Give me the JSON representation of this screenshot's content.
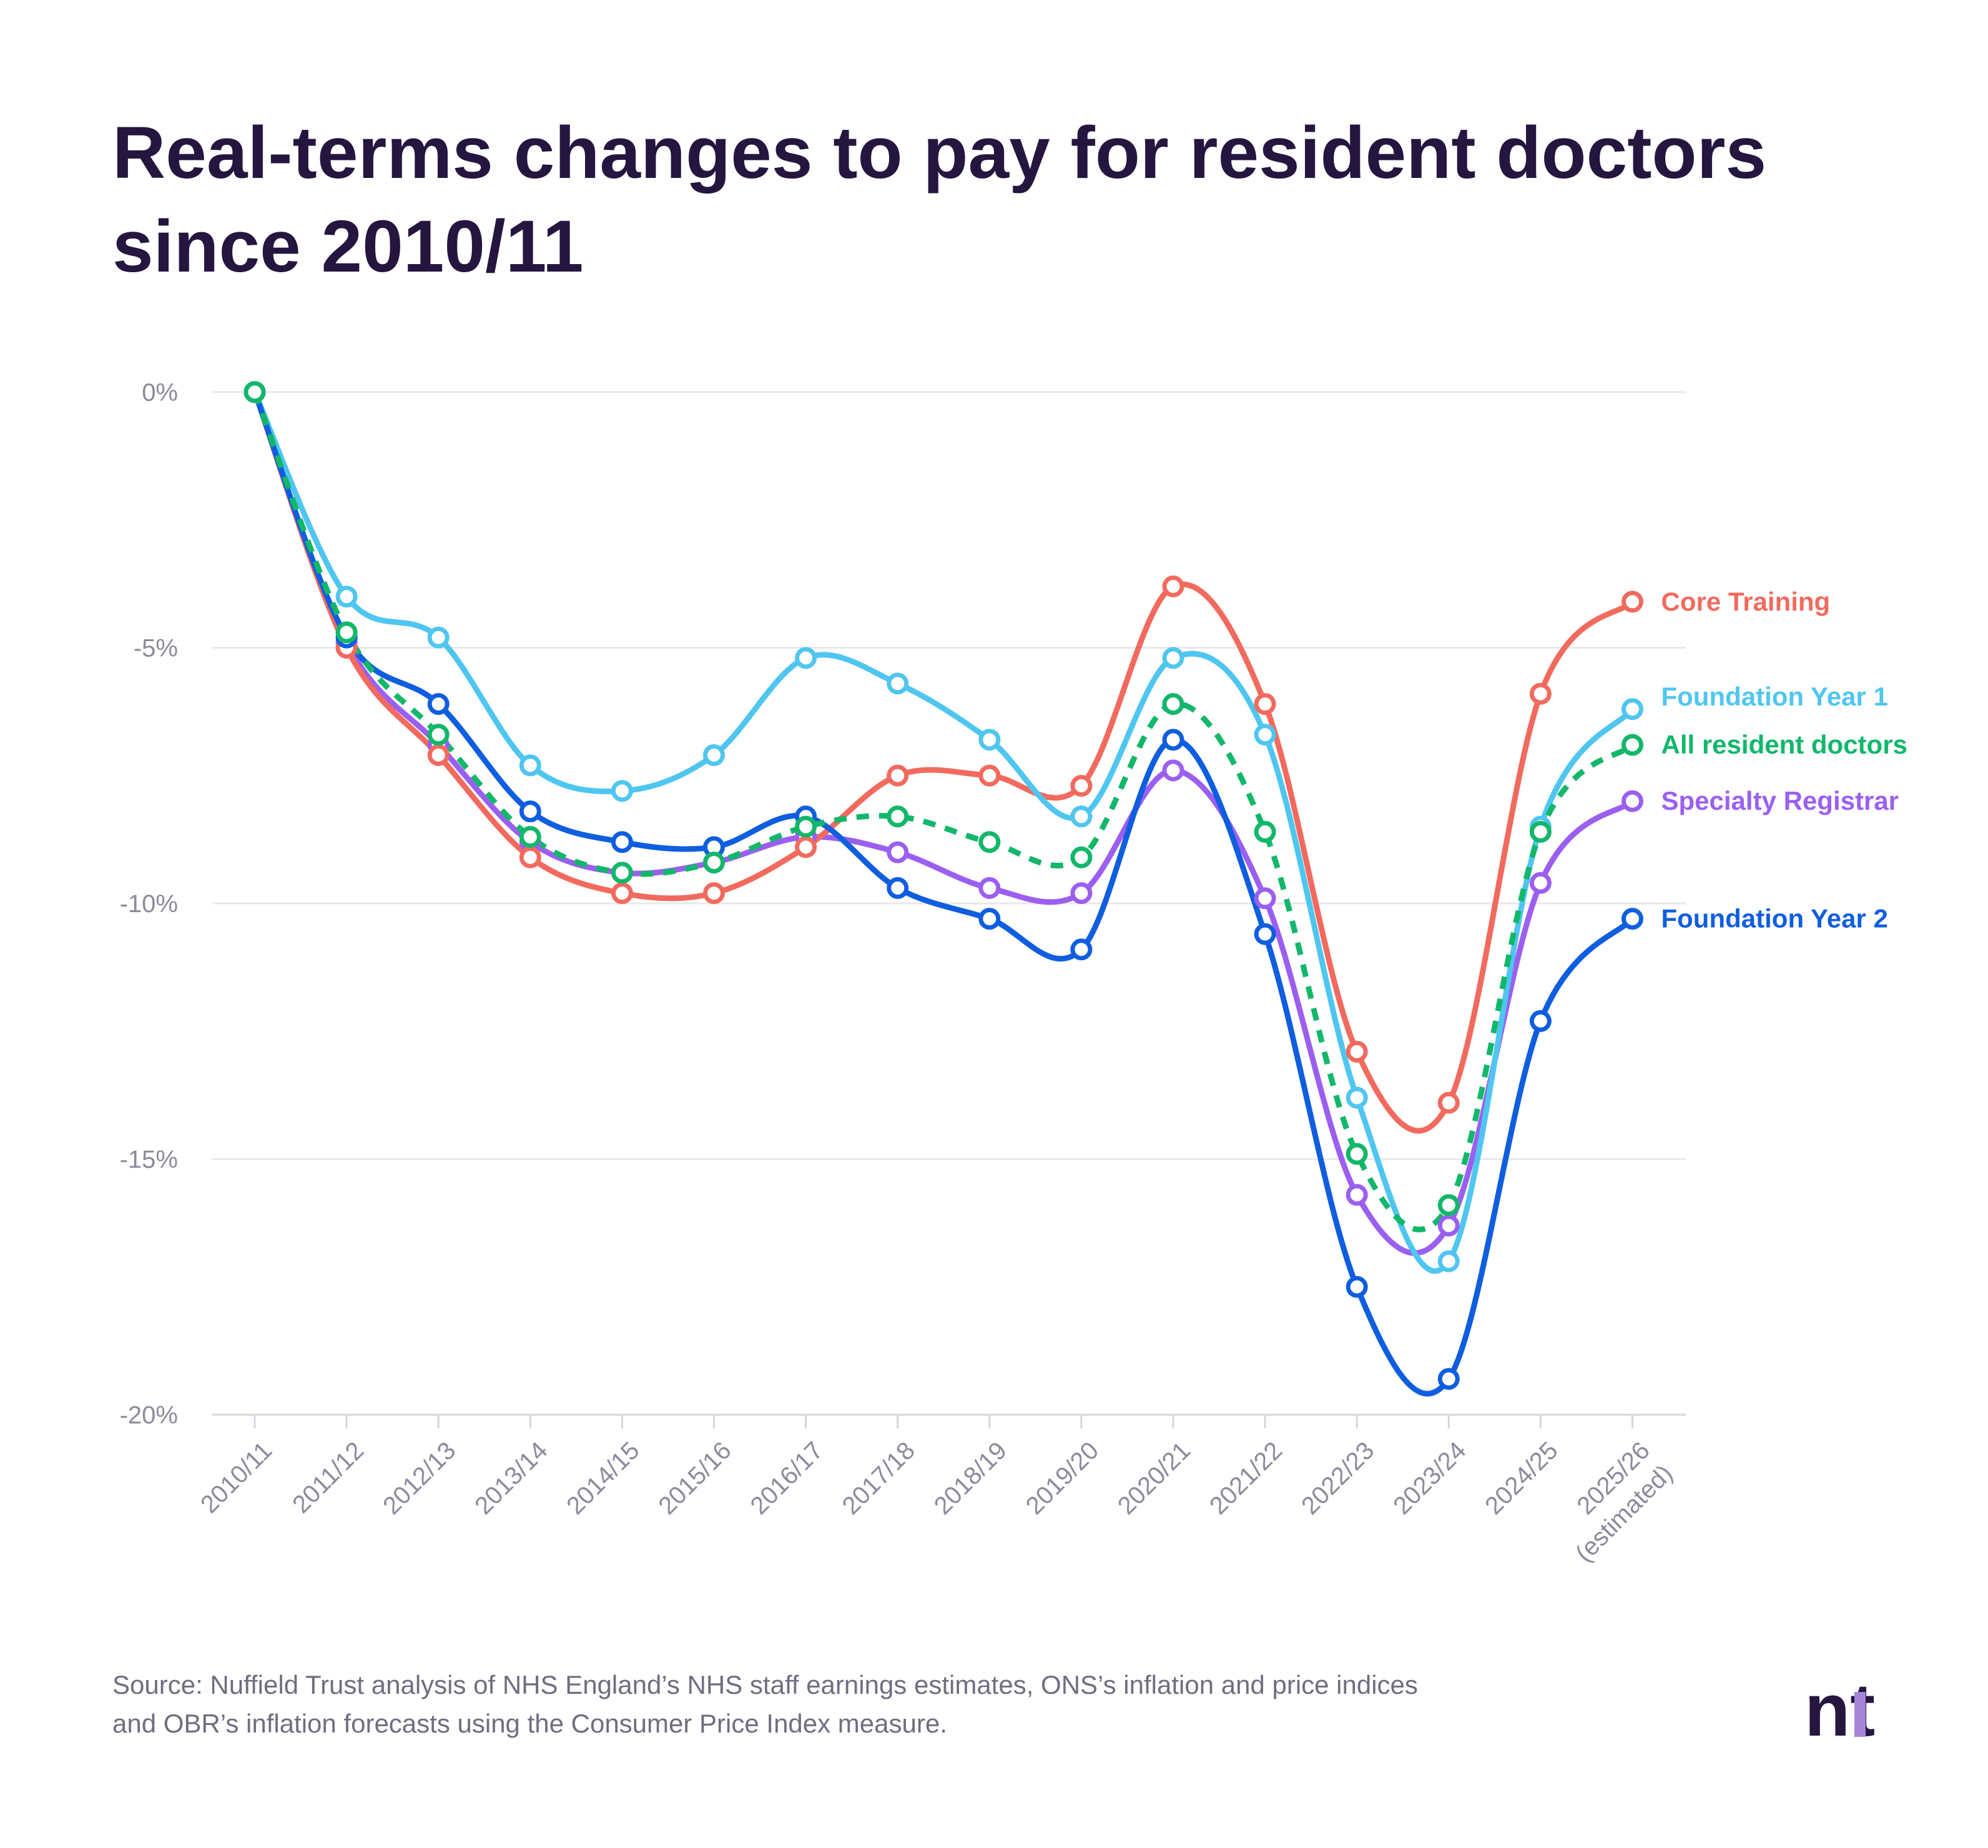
{
  "title": {
    "line1": "Real-terms changes to pay for resident doctors",
    "line2": "since 2010/11"
  },
  "source": {
    "line1": "Source: Nuffield Trust analysis of NHS England’s NHS staff earnings estimates, ONS’s inflation and price indices",
    "line2": "and OBR’s inflation forecasts using the Consumer Price Index measure."
  },
  "logo": {
    "icon": "nt-logo-icon",
    "text": "nt"
  },
  "chart_data": {
    "type": "line",
    "title": "Real-terms changes to pay for resident doctors since 2010/11",
    "xlabel": "",
    "ylabel": "",
    "ylim": [
      -20,
      0
    ],
    "yticks": [
      0,
      -5,
      -10,
      -15,
      -20
    ],
    "ytick_labels": [
      "0%",
      "-5%",
      "-10%",
      "-15%",
      "-20%"
    ],
    "grid": "horizontal",
    "legend": "end-of-line labels",
    "categories": [
      "2010/11",
      "2011/12",
      "2012/13",
      "2013/14",
      "2014/15",
      "2015/16",
      "2016/17",
      "2017/18",
      "2018/19",
      "2019/20",
      "2020/21",
      "2021/22",
      "2022/23",
      "2023/24",
      "2024/25",
      "2025/26 (estimated)"
    ],
    "category_labels": [
      [
        "2010/11"
      ],
      [
        "2011/12"
      ],
      [
        "2012/13"
      ],
      [
        "2013/14"
      ],
      [
        "2014/15"
      ],
      [
        "2015/16"
      ],
      [
        "2016/17"
      ],
      [
        "2017/18"
      ],
      [
        "2018/19"
      ],
      [
        "2019/20"
      ],
      [
        "2020/21"
      ],
      [
        "2021/22"
      ],
      [
        "2022/23"
      ],
      [
        "2023/24"
      ],
      [
        "2024/25"
      ],
      [
        "2025/26",
        "(estimated)"
      ]
    ],
    "series": [
      {
        "name": "Specialty Registrar",
        "color": "#9b5ff0",
        "dashed": false,
        "values": [
          0,
          -4.9,
          -6.9,
          -8.8,
          -9.4,
          -9.2,
          -8.7,
          -9.0,
          -9.7,
          -9.8,
          -7.4,
          -9.9,
          -15.7,
          -16.3,
          -9.6,
          -8.0
        ]
      },
      {
        "name": "Core Training",
        "color": "#f26a5e",
        "dashed": false,
        "values": [
          0,
          -5.0,
          -7.1,
          -9.1,
          -9.8,
          -9.8,
          -8.9,
          -7.5,
          -7.5,
          -7.7,
          -3.8,
          -6.1,
          -12.9,
          -13.9,
          -5.9,
          -4.1
        ]
      },
      {
        "name": "Foundation Year 1",
        "color": "#4fc6f0",
        "dashed": false,
        "values": [
          0,
          -4.0,
          -4.8,
          -7.3,
          -7.8,
          -7.1,
          -5.2,
          -5.7,
          -6.8,
          -8.3,
          -5.2,
          -6.7,
          -13.8,
          -17.0,
          -8.5,
          -6.2
        ]
      },
      {
        "name": "Foundation Year 2",
        "color": "#0f5ee0",
        "dashed": false,
        "values": [
          0,
          -4.8,
          -6.1,
          -8.2,
          -8.8,
          -8.9,
          -8.3,
          -9.7,
          -10.3,
          -10.9,
          -6.8,
          -10.6,
          -17.5,
          -19.3,
          -12.3,
          -10.3
        ]
      },
      {
        "name": "All resident doctors",
        "color": "#12b76a",
        "dashed": true,
        "values": [
          0,
          -4.7,
          -6.7,
          -8.7,
          -9.4,
          -9.2,
          -8.5,
          -8.3,
          -8.8,
          -9.1,
          -6.1,
          -8.6,
          -14.9,
          -15.9,
          -8.6,
          -6.9
        ]
      }
    ]
  }
}
